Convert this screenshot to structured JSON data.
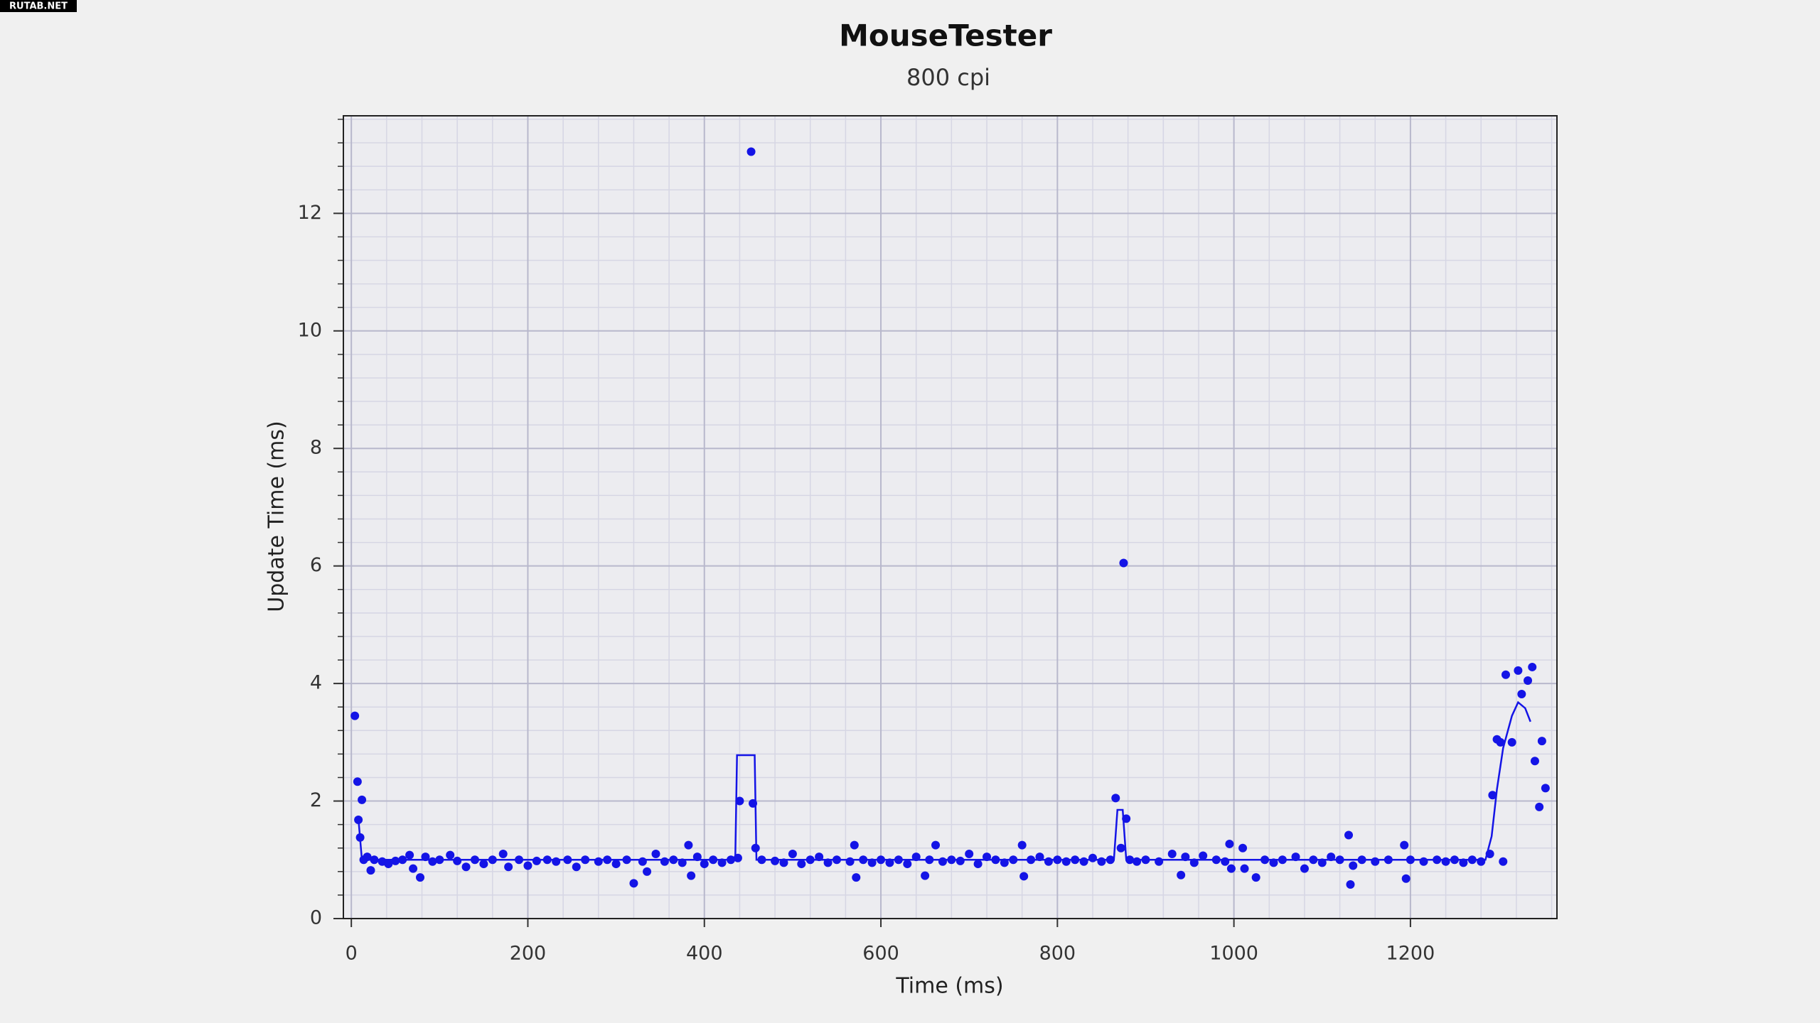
{
  "watermark": "RUTAB.NET",
  "chart_data": {
    "type": "scatter",
    "title": "MouseTester",
    "subtitle": "800 cpi",
    "x_label": "Time (ms)",
    "y_label": "Update Time (ms)",
    "xlim": [
      -9,
      1366
    ],
    "ylim": [
      0,
      13.66
    ],
    "xticks": [
      0,
      200,
      400,
      600,
      800,
      1000,
      1200
    ],
    "yticks": [
      0,
      2,
      4,
      6,
      8,
      10,
      12
    ],
    "grid": true,
    "minor_grid": true,
    "series": [
      {
        "type": "scatter",
        "color": "#1414e6",
        "x": [
          4,
          7,
          8,
          10,
          12,
          14,
          18,
          22,
          26,
          35,
          42,
          50,
          58,
          66,
          70,
          78,
          84,
          92,
          100,
          112,
          120,
          130,
          140,
          150,
          160,
          172,
          178,
          190,
          200,
          210,
          222,
          232,
          245,
          255,
          265,
          280,
          290,
          300,
          312,
          320,
          330,
          335,
          345,
          355,
          365,
          375,
          382,
          385,
          392,
          400,
          410,
          420,
          430,
          438,
          440,
          453,
          455,
          458,
          465,
          480,
          490,
          500,
          510,
          520,
          530,
          540,
          550,
          565,
          570,
          572,
          580,
          590,
          600,
          610,
          620,
          630,
          640,
          650,
          655,
          662,
          670,
          680,
          690,
          700,
          710,
          720,
          730,
          740,
          750,
          760,
          762,
          770,
          780,
          790,
          800,
          810,
          820,
          830,
          840,
          850,
          860,
          866,
          872,
          875,
          878,
          882,
          890,
          900,
          915,
          930,
          940,
          945,
          955,
          965,
          980,
          990,
          995,
          997,
          1010,
          1012,
          1025,
          1035,
          1045,
          1055,
          1070,
          1080,
          1090,
          1100,
          1110,
          1120,
          1130,
          1132,
          1135,
          1145,
          1160,
          1175,
          1193,
          1195,
          1200,
          1215,
          1230,
          1240,
          1250,
          1260,
          1270,
          1280,
          1290,
          1293,
          1298,
          1302,
          1305,
          1308,
          1315,
          1322,
          1326,
          1333,
          1338,
          1341,
          1346,
          1349,
          1353
        ],
        "values": [
          3.45,
          2.33,
          1.68,
          1.38,
          2.02,
          1.0,
          1.05,
          0.82,
          1.0,
          0.97,
          0.93,
          0.98,
          1.0,
          1.08,
          0.85,
          0.7,
          1.05,
          0.97,
          1.0,
          1.08,
          0.98,
          0.88,
          1.0,
          0.93,
          1.0,
          1.1,
          0.88,
          1.0,
          0.9,
          0.98,
          1.0,
          0.97,
          1.0,
          0.88,
          1.0,
          0.97,
          1.0,
          0.93,
          1.0,
          0.6,
          0.97,
          0.8,
          1.1,
          0.97,
          1.0,
          0.95,
          1.25,
          0.73,
          1.05,
          0.93,
          1.0,
          0.95,
          1.0,
          1.03,
          2.0,
          13.05,
          1.96,
          1.2,
          1.0,
          0.98,
          0.95,
          1.1,
          0.93,
          1.0,
          1.05,
          0.95,
          1.0,
          0.97,
          1.25,
          0.7,
          1.0,
          0.95,
          1.0,
          0.95,
          1.0,
          0.93,
          1.05,
          0.73,
          1.0,
          1.25,
          0.97,
          1.0,
          0.98,
          1.1,
          0.93,
          1.05,
          1.0,
          0.95,
          1.0,
          1.25,
          0.72,
          1.0,
          1.05,
          0.97,
          1.0,
          0.97,
          1.0,
          0.97,
          1.03,
          0.97,
          1.0,
          2.05,
          1.2,
          6.05,
          1.7,
          1.0,
          0.97,
          1.0,
          0.97,
          1.1,
          0.74,
          1.05,
          0.95,
          1.07,
          1.0,
          0.97,
          1.27,
          0.85,
          1.2,
          0.85,
          0.7,
          1.0,
          0.95,
          1.0,
          1.05,
          0.85,
          1.0,
          0.95,
          1.05,
          1.0,
          1.42,
          0.58,
          0.9,
          1.0,
          0.97,
          1.0,
          1.25,
          0.68,
          1.0,
          0.97,
          1.0,
          0.97,
          1.0,
          0.95,
          1.0,
          0.97,
          1.1,
          2.1,
          3.05,
          3.0,
          0.97,
          4.15,
          3.0,
          4.22,
          3.82,
          4.05,
          4.28,
          2.68,
          1.9,
          3.02,
          2.22
        ]
      },
      {
        "type": "line",
        "color": "#1414e6",
        "x": [
          8,
          12,
          20,
          200,
          435,
          437,
          457,
          459,
          700,
          864,
          868,
          874,
          878,
          1100,
          1285,
          1292,
          1298,
          1305,
          1315,
          1322,
          1330,
          1336
        ],
        "values": [
          1.7,
          1.0,
          1.0,
          1.0,
          1.0,
          2.78,
          2.78,
          1.0,
          1.0,
          1.0,
          1.85,
          1.85,
          1.0,
          1.0,
          1.0,
          1.4,
          2.2,
          2.9,
          3.45,
          3.68,
          3.58,
          3.35
        ]
      }
    ]
  }
}
